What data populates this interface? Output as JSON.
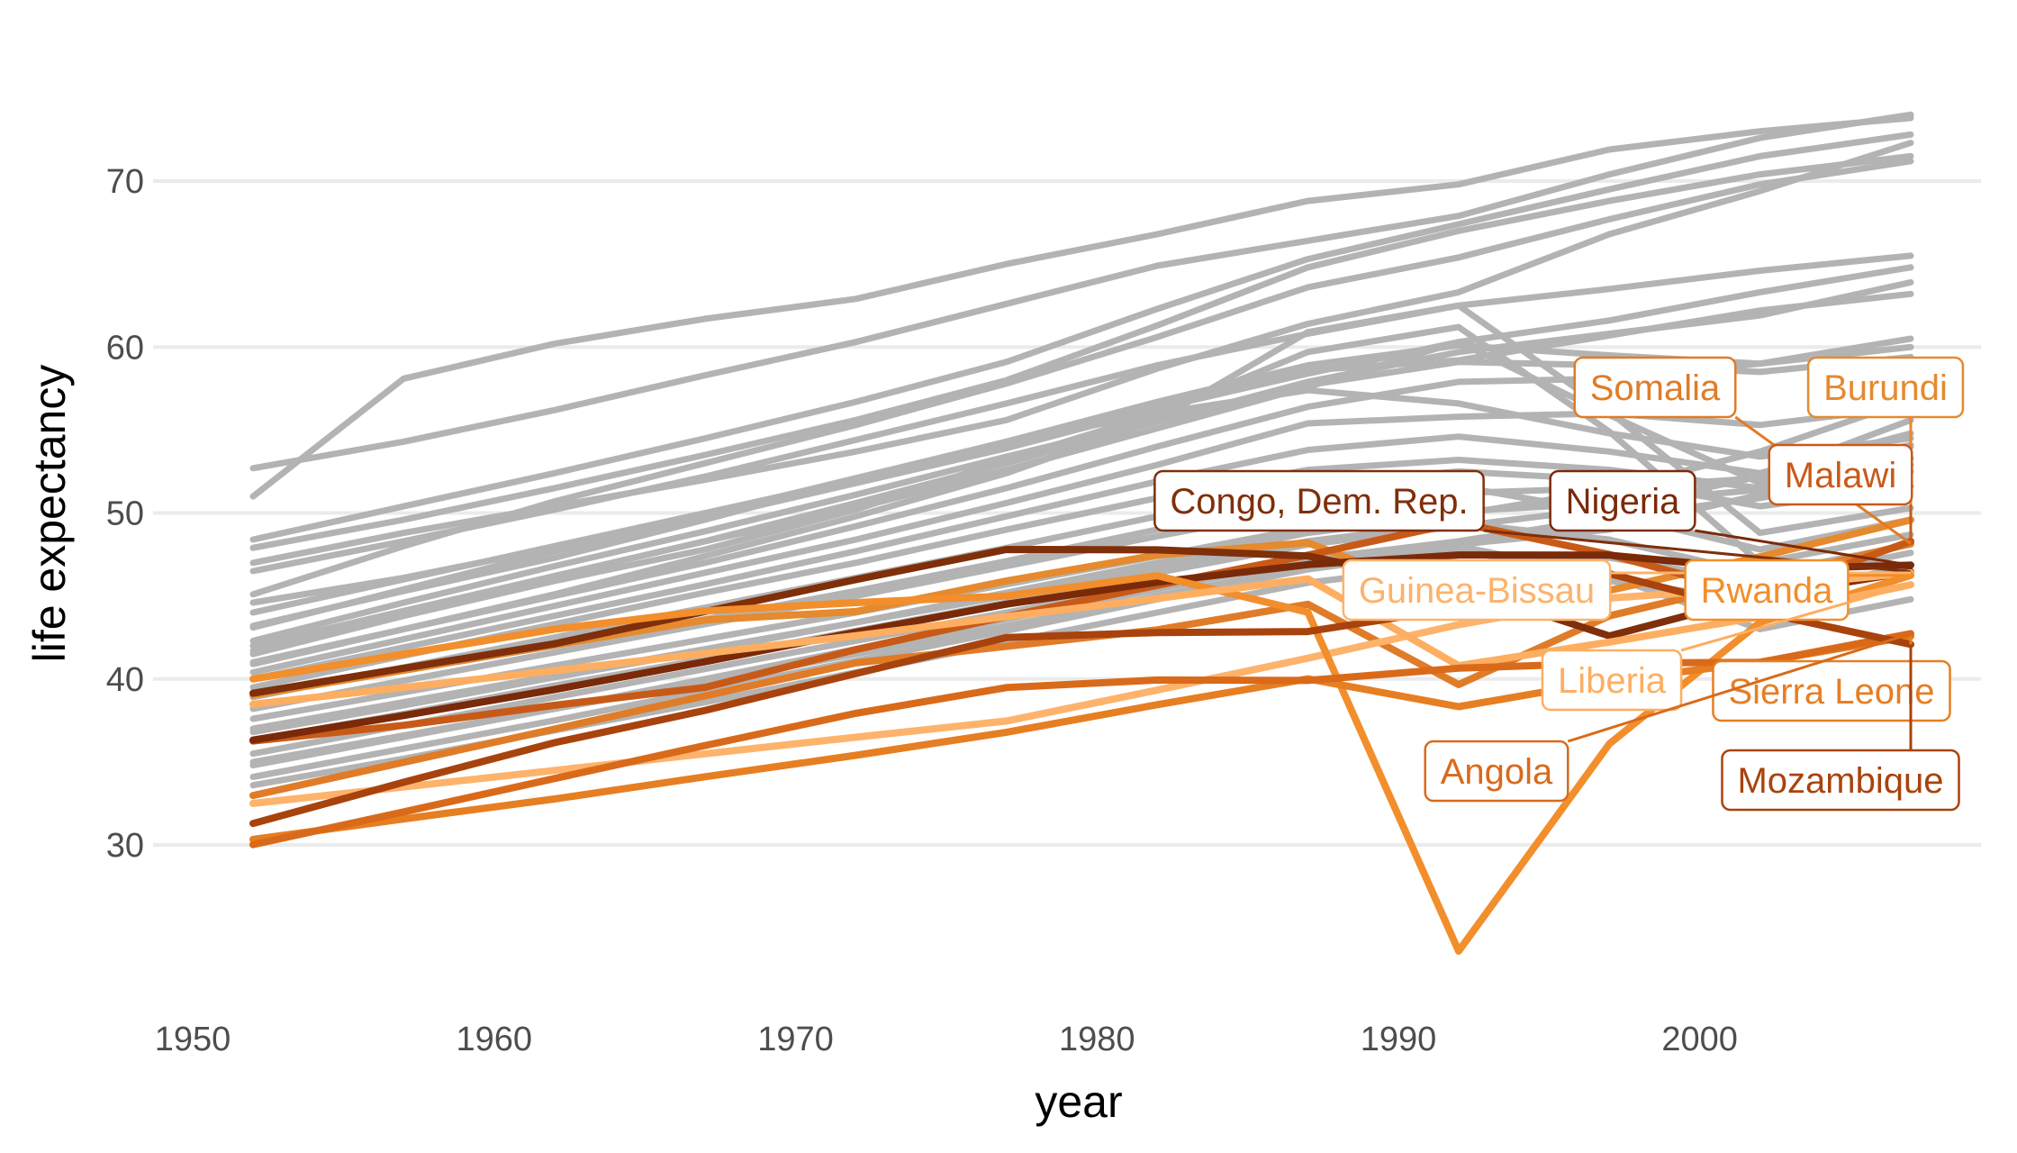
{
  "chart_data": {
    "type": "line",
    "title": "",
    "xlabel": "year",
    "ylabel": "life expectancy",
    "xlim": [
      1950,
      2009
    ],
    "ylim": [
      21.5,
      78
    ],
    "x_ticks": [
      1950,
      1960,
      1970,
      1980,
      1990,
      2000
    ],
    "y_ticks": [
      30,
      40,
      50,
      60,
      70
    ],
    "grid": true,
    "legend": "none",
    "background_color": "#b3b3b3",
    "x": [
      1952,
      1957,
      1962,
      1967,
      1972,
      1977,
      1982,
      1987,
      1992,
      1997,
      2002,
      2007
    ],
    "background_series": [
      {
        "values": [
          52.7,
          54.3,
          56.2,
          58.3,
          60.3,
          62.6,
          64.9,
          66.4,
          67.9,
          70.4,
          72.6,
          74.0
        ]
      },
      {
        "values": [
          51.0,
          58.1,
          60.2,
          61.7,
          62.9,
          65.0,
          66.8,
          68.8,
          69.8,
          71.9,
          73.0,
          73.8
        ]
      },
      {
        "values": [
          48.4,
          50.4,
          52.4,
          54.5,
          56.7,
          59.1,
          62.3,
          65.3,
          67.4,
          69.5,
          71.5,
          72.8
        ]
      },
      {
        "values": [
          47.9,
          49.6,
          51.5,
          53.5,
          55.6,
          58.0,
          61.3,
          64.8,
          67.0,
          68.8,
          70.4,
          71.5
        ]
      },
      {
        "values": [
          45.1,
          48.0,
          50.7,
          53.0,
          55.3,
          57.8,
          60.6,
          63.6,
          65.4,
          67.7,
          69.8,
          71.2
        ]
      },
      {
        "values": [
          47.0,
          48.8,
          50.4,
          52.0,
          53.7,
          55.6,
          58.7,
          61.4,
          63.3,
          66.8,
          69.4,
          72.3
        ]
      },
      {
        "values": [
          46.5,
          48.3,
          50.2,
          52.2,
          54.4,
          56.6,
          58.9,
          60.8,
          62.5,
          63.5,
          64.6,
          65.5
        ]
      },
      {
        "values": [
          44.6,
          46.1,
          47.9,
          49.7,
          51.8,
          53.9,
          56.3,
          58.4,
          60.3,
          61.6,
          63.3,
          64.8
        ]
      },
      {
        "values": [
          43.1,
          45.4,
          47.7,
          49.9,
          52.1,
          54.3,
          56.6,
          58.6,
          59.2,
          60.7,
          62.2,
          63.2
        ]
      },
      {
        "values": [
          42.3,
          44.6,
          46.8,
          48.9,
          51.1,
          53.4,
          55.6,
          57.7,
          59.1,
          58.9,
          58.5,
          59.4
        ]
      },
      {
        "values": [
          43.2,
          45.3,
          47.3,
          49.6,
          52.0,
          54.3,
          56.0,
          57.4,
          56.6,
          54.8,
          53.4,
          54.5
        ]
      },
      {
        "values": [
          41.7,
          44.0,
          46.2,
          48.3,
          50.3,
          52.6,
          55.1,
          57.6,
          60.3,
          55.9,
          51.8,
          52.9
        ]
      },
      {
        "values": [
          41.5,
          43.8,
          45.9,
          47.8,
          50.2,
          53.2,
          56.0,
          59.7,
          61.2,
          54.9,
          47.0,
          48.7
        ]
      },
      {
        "values": [
          40.9,
          43.0,
          45.1,
          47.4,
          49.8,
          52.4,
          55.6,
          60.9,
          62.5,
          56.1,
          48.8,
          50.3
        ]
      },
      {
        "values": [
          40.4,
          42.4,
          44.4,
          46.4,
          48.4,
          50.6,
          52.9,
          55.4,
          55.8,
          56.0,
          55.3,
          56.4
        ]
      },
      {
        "values": [
          40.0,
          41.9,
          43.8,
          45.7,
          47.7,
          49.8,
          51.9,
          53.8,
          54.6,
          53.7,
          52.4,
          54.8
        ]
      },
      {
        "values": [
          39.5,
          41.4,
          43.3,
          45.2,
          47.0,
          49.0,
          50.9,
          52.6,
          53.2,
          52.6,
          51.5,
          52.5
        ]
      },
      {
        "values": [
          38.9,
          40.7,
          42.5,
          44.3,
          46.1,
          47.9,
          49.8,
          51.7,
          52.5,
          52.0,
          50.4,
          51.6
        ]
      },
      {
        "values": [
          38.2,
          39.9,
          41.6,
          43.3,
          45.0,
          46.8,
          48.6,
          50.3,
          51.2,
          51.5,
          52.1,
          54.1
        ]
      },
      {
        "values": [
          37.6,
          39.2,
          40.8,
          42.4,
          44.0,
          45.7,
          47.4,
          49.1,
          50.1,
          50.6,
          51.4,
          53.3
        ]
      },
      {
        "values": [
          37.0,
          38.6,
          40.2,
          41.8,
          43.4,
          45.0,
          46.7,
          48.3,
          49.4,
          48.4,
          46.3,
          48.1
        ]
      },
      {
        "values": [
          36.3,
          37.9,
          39.6,
          41.2,
          42.9,
          44.6,
          46.4,
          48.1,
          49.2,
          50.3,
          52.2,
          55.6
        ]
      },
      {
        "values": [
          35.5,
          37.2,
          38.9,
          40.6,
          42.3,
          44.0,
          45.7,
          47.3,
          48.1,
          49.0,
          51.1,
          54.0
        ]
      },
      {
        "values": [
          34.8,
          36.5,
          38.2,
          40.0,
          41.8,
          43.6,
          45.4,
          47.2,
          48.3,
          49.7,
          50.9,
          52.5
        ]
      },
      {
        "values": [
          34.1,
          35.8,
          37.5,
          39.3,
          41.1,
          42.9,
          44.8,
          46.6,
          47.8,
          45.9,
          44.7,
          46.9
        ]
      },
      {
        "values": [
          33.6,
          35.2,
          36.9,
          38.6,
          40.4,
          42.2,
          44.0,
          45.8,
          46.9,
          47.3,
          45.8,
          47.6
        ]
      },
      {
        "values": [
          42.0,
          44.1,
          46.2,
          48.3,
          50.6,
          53.0,
          55.5,
          57.9,
          59.7,
          60.8,
          61.9,
          63.9
        ]
      },
      {
        "values": [
          44.0,
          46.0,
          48.0,
          50.0,
          52.0,
          54.3,
          56.7,
          58.9,
          60.1,
          59.5,
          59.0,
          60.0
        ]
      },
      {
        "values": [
          41.0,
          43.0,
          45.0,
          47.0,
          49.2,
          51.5,
          54.0,
          56.4,
          57.9,
          58.1,
          59.0,
          60.5
        ]
      },
      {
        "values": [
          39.0,
          40.5,
          42.0,
          43.6,
          45.3,
          47.1,
          49.0,
          50.9,
          51.6,
          50.0,
          47.8,
          49.6
        ]
      },
      {
        "values": [
          36.8,
          38.4,
          40.1,
          41.7,
          43.4,
          45.2,
          47.0,
          48.8,
          49.9,
          51.4,
          53.7,
          56.8
        ]
      },
      {
        "values": [
          35.0,
          36.6,
          38.2,
          39.8,
          41.5,
          43.2,
          45.0,
          46.8,
          48.0,
          46.2,
          43.0,
          44.8
        ]
      }
    ],
    "highlighted_series": [
      {
        "name": "Somalia",
        "color": "#e07b28",
        "values": [
          32.98,
          34.98,
          36.98,
          38.98,
          40.97,
          41.97,
          42.96,
          44.5,
          39.66,
          43.8,
          45.94,
          48.16
        ]
      },
      {
        "name": "Burundi",
        "color": "#e58a2e",
        "values": [
          39.03,
          40.53,
          42.05,
          43.55,
          44.06,
          45.91,
          47.47,
          48.21,
          44.74,
          45.33,
          47.36,
          49.58
        ]
      },
      {
        "name": "Malawi",
        "color": "#c85a18",
        "values": [
          36.26,
          37.21,
          38.41,
          39.49,
          41.77,
          43.77,
          45.64,
          47.46,
          49.42,
          47.5,
          45.01,
          48.3
        ]
      },
      {
        "name": "Congo, Dem. Rep.",
        "color": "#7f2f0a",
        "values": [
          39.14,
          40.65,
          42.12,
          44.06,
          45.99,
          47.8,
          47.78,
          47.41,
          45.55,
          42.59,
          44.97,
          46.46
        ]
      },
      {
        "name": "Nigeria",
        "color": "#7a2a08",
        "values": [
          36.32,
          37.8,
          39.36,
          41.04,
          42.82,
          44.51,
          45.83,
          46.89,
          47.47,
          47.46,
          46.61,
          46.86
        ]
      },
      {
        "name": "Guinea-Bissau",
        "color": "#fdb36b",
        "values": [
          32.5,
          33.49,
          34.49,
          35.49,
          36.49,
          37.47,
          39.33,
          41.25,
          43.27,
          44.87,
          45.5,
          46.39
        ]
      },
      {
        "name": "Rwanda",
        "color": "#f28e2b",
        "values": [
          40.0,
          41.5,
          43.0,
          44.1,
          44.6,
          45.0,
          46.22,
          44.02,
          23.6,
          36.09,
          43.41,
          46.24
        ]
      },
      {
        "name": "Liberia",
        "color": "#fdae61",
        "values": [
          38.48,
          39.49,
          40.5,
          41.54,
          42.61,
          43.76,
          44.85,
          46.03,
          40.8,
          42.22,
          43.75,
          45.68
        ]
      },
      {
        "name": "Sierra Leone",
        "color": "#e67e22",
        "values": [
          30.33,
          31.57,
          32.77,
          34.11,
          35.4,
          36.79,
          38.45,
          40.01,
          38.33,
          39.9,
          41.01,
          42.57
        ]
      },
      {
        "name": "Angola",
        "color": "#d96a1a",
        "values": [
          30.02,
          31.99,
          34.0,
          35.99,
          37.93,
          39.48,
          39.94,
          39.91,
          40.65,
          40.96,
          41.0,
          42.73
        ]
      },
      {
        "name": "Mozambique",
        "color": "#a8430d",
        "values": [
          31.29,
          33.78,
          36.16,
          38.11,
          40.33,
          42.5,
          42.8,
          42.86,
          44.28,
          46.34,
          44.03,
          42.08
        ]
      }
    ],
    "labels": [
      {
        "text": "Somalia",
        "text_color": "#e07b28",
        "fill": "#ffffff"
      },
      {
        "text": "Burundi",
        "text_color": "#e58a2e",
        "fill": "#ffffff"
      },
      {
        "text": "Malawi",
        "text_color": "#c85a18",
        "fill": "#ffffff"
      },
      {
        "text": "Congo, Dem. Rep.",
        "text_color": "#7f2f0a",
        "fill": "#ffffff"
      },
      {
        "text": "Nigeria",
        "text_color": "#7a2a08",
        "fill": "#ffffff"
      },
      {
        "text": "Guinea-Bissau",
        "text_color": "#fdb36b",
        "fill": "#ffffff"
      },
      {
        "text": "Rwanda",
        "text_color": "#f28e2b",
        "fill": "#ffffff"
      },
      {
        "text": "Liberia",
        "text_color": "#fdae61",
        "fill": "#ffffff"
      },
      {
        "text": "Sierra Leone",
        "text_color": "#e67e22",
        "fill": "#ffffff"
      },
      {
        "text": "Angola",
        "text_color": "#d96a1a",
        "fill": "#ffffff"
      },
      {
        "text": "Mozambique",
        "text_color": "#a8430d",
        "fill": "#ffffff"
      }
    ]
  }
}
